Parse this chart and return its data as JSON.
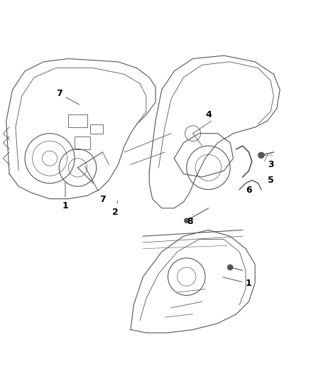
{
  "title": "",
  "background_color": "#ffffff",
  "line_color": "#555555",
  "label_color": "#000000",
  "labels": {
    "1": [
      0.22,
      0.42,
      "1"
    ],
    "2": [
      0.37,
      0.4,
      "2"
    ],
    "3": [
      0.87,
      0.56,
      "3"
    ],
    "4": [
      0.68,
      0.72,
      "4"
    ],
    "5": [
      0.87,
      0.52,
      "5"
    ],
    "6": [
      0.8,
      0.48,
      "6"
    ],
    "7a": [
      0.2,
      0.78,
      "7"
    ],
    "7b": [
      0.33,
      0.44,
      "7"
    ],
    "8": [
      0.61,
      0.38,
      "8"
    ],
    "1b": [
      0.8,
      0.18,
      "1"
    ]
  },
  "figsize": [
    4.38,
    5.33
  ],
  "dpi": 100
}
